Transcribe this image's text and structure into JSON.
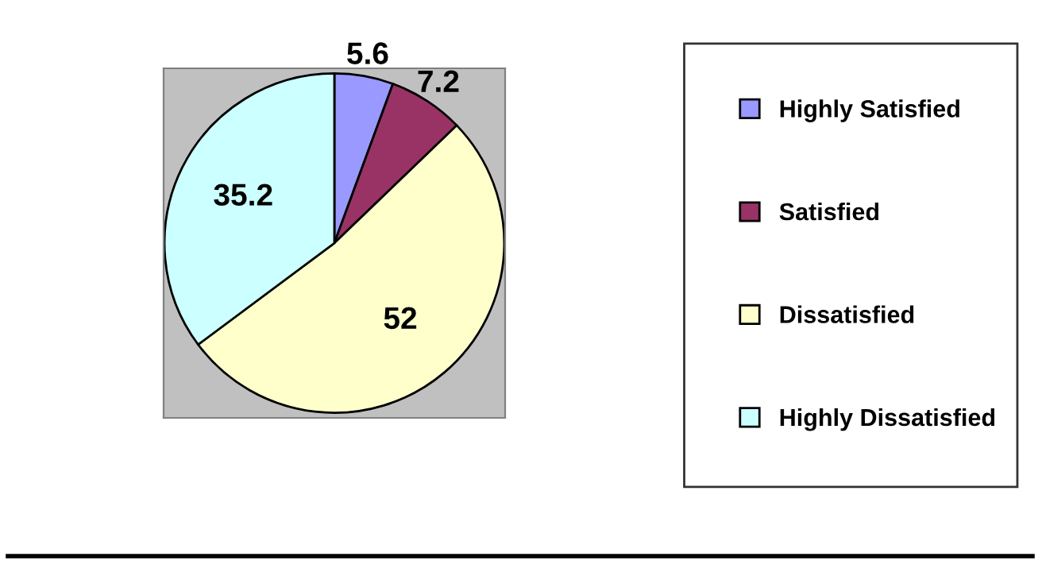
{
  "chart_data": {
    "type": "pie",
    "categories": [
      "Highly Satisfied",
      "Satisfied",
      "Dissatisfied",
      "Highly Dissatisfied"
    ],
    "values": [
      5.6,
      7.2,
      52,
      35.2
    ],
    "colors": [
      "#9999ff",
      "#993366",
      "#ffffcc",
      "#ccffff"
    ],
    "data_labels": true,
    "legend": "right"
  }
}
